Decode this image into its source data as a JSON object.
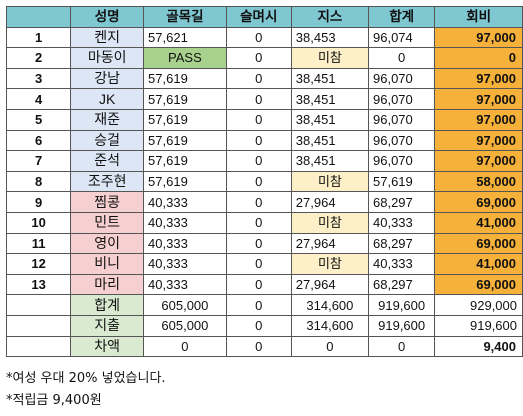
{
  "headers": [
    "",
    "성명",
    "골목길",
    "슬며시",
    "지스",
    "합계",
    "회비"
  ],
  "rows": [
    {
      "rank": "1",
      "name": "켄지",
      "a": "57,621",
      "b": "0",
      "c": "38,453",
      "total": "96,074",
      "fee": "97,000",
      "name_color": "blue",
      "c_color": ""
    },
    {
      "rank": "2",
      "name": "마동이",
      "a": "PASS",
      "b": "0",
      "c": "미참",
      "total": "0",
      "fee": "0",
      "name_color": "blue",
      "c_color": "yellow"
    },
    {
      "rank": "3",
      "name": "강남",
      "a": "57,619",
      "b": "0",
      "c": "38,451",
      "total": "96,070",
      "fee": "97,000",
      "name_color": "blue",
      "c_color": ""
    },
    {
      "rank": "4",
      "name": "JK",
      "a": "57,619",
      "b": "0",
      "c": "38,451",
      "total": "96,070",
      "fee": "97,000",
      "name_color": "blue",
      "c_color": ""
    },
    {
      "rank": "5",
      "name": "재준",
      "a": "57,619",
      "b": "0",
      "c": "38,451",
      "total": "96,070",
      "fee": "97,000",
      "name_color": "blue",
      "c_color": ""
    },
    {
      "rank": "6",
      "name": "승걸",
      "a": "57,619",
      "b": "0",
      "c": "38,451",
      "total": "96,070",
      "fee": "97,000",
      "name_color": "blue",
      "c_color": ""
    },
    {
      "rank": "7",
      "name": "준석",
      "a": "57,619",
      "b": "0",
      "c": "38,451",
      "total": "96,070",
      "fee": "97,000",
      "name_color": "blue",
      "c_color": ""
    },
    {
      "rank": "8",
      "name": "조주현",
      "a": "57,619",
      "b": "0",
      "c": "미참",
      "total": "57,619",
      "fee": "58,000",
      "name_color": "blue",
      "c_color": "yellow"
    },
    {
      "rank": "9",
      "name": "찜콩",
      "a": "40,333",
      "b": "0",
      "c": "27,964",
      "total": "68,297",
      "fee": "69,000",
      "name_color": "pink",
      "c_color": ""
    },
    {
      "rank": "10",
      "name": "민트",
      "a": "40,333",
      "b": "0",
      "c": "미참",
      "total": "40,333",
      "fee": "41,000",
      "name_color": "pink",
      "c_color": "yellow"
    },
    {
      "rank": "11",
      "name": "영이",
      "a": "40,333",
      "b": "0",
      "c": "27,964",
      "total": "68,297",
      "fee": "69,000",
      "name_color": "pink",
      "c_color": ""
    },
    {
      "rank": "12",
      "name": "비니",
      "a": "40,333",
      "b": "0",
      "c": "미참",
      "total": "40,333",
      "fee": "41,000",
      "name_color": "pink",
      "c_color": "yellow"
    },
    {
      "rank": "13",
      "name": "마리",
      "a": "40,333",
      "b": "0",
      "c": "27,964",
      "total": "68,297",
      "fee": "69,000",
      "name_color": "pink",
      "c_color": ""
    }
  ],
  "summary": [
    {
      "label": "합계",
      "a": "605,000",
      "b": "0",
      "c": "314,600",
      "total": "919,600",
      "fee": "929,000"
    },
    {
      "label": "지출",
      "a": "605,000",
      "b": "0",
      "c": "314,600",
      "total": "919,600",
      "fee": "919,600"
    },
    {
      "label": "차액",
      "a": "0",
      "b": "0",
      "c": "0",
      "total": "0",
      "fee": "9,400"
    }
  ],
  "notes": [
    "*여성 우대 20% 넣었습니다.",
    "*적립금 9,400원"
  ],
  "colors": {
    "header": "#7fc7d1",
    "blue": "#dce6f4",
    "pink": "#f6cfd0",
    "green": "#d9ead0",
    "pass": "#a9d18e",
    "yellow": "#fdf0c8",
    "orange": "#f5b13a"
  }
}
